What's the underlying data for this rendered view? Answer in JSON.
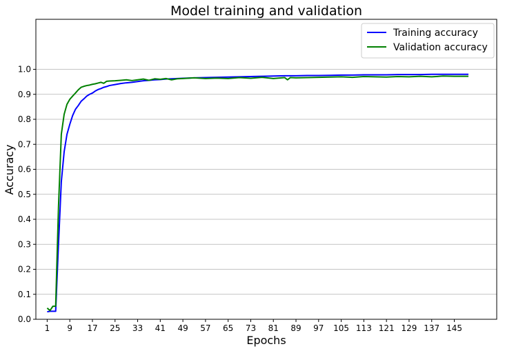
{
  "chart_data": {
    "type": "line",
    "title": "Model training and validation",
    "xlabel": "Epochs",
    "ylabel": "Accuracy",
    "xlim": [
      -3,
      160
    ],
    "ylim": [
      0.0,
      1.2
    ],
    "x_ticks": [
      1,
      9,
      17,
      25,
      33,
      41,
      49,
      57,
      65,
      73,
      81,
      89,
      97,
      105,
      113,
      121,
      129,
      137,
      145
    ],
    "y_ticks": [
      0.0,
      0.1,
      0.2,
      0.3,
      0.4,
      0.5,
      0.6,
      0.7,
      0.8,
      0.9,
      1.0
    ],
    "y_tick_labels": [
      "0.0",
      "0.1",
      "0.2",
      "0.3",
      "0.4",
      "0.5",
      "0.6",
      "0.7",
      "0.8",
      "0.9",
      "1.0"
    ],
    "grid": "horizontal",
    "legend_position": "top-right",
    "series": [
      {
        "name": "Training accuracy",
        "color": "#0000ff",
        "points": [
          [
            1,
            0.03
          ],
          [
            2,
            0.032
          ],
          [
            3,
            0.032
          ],
          [
            4,
            0.032
          ],
          [
            5,
            0.3
          ],
          [
            6,
            0.55
          ],
          [
            7,
            0.67
          ],
          [
            8,
            0.74
          ],
          [
            9,
            0.78
          ],
          [
            10,
            0.815
          ],
          [
            11,
            0.84
          ],
          [
            12,
            0.855
          ],
          [
            13,
            0.872
          ],
          [
            14,
            0.882
          ],
          [
            15,
            0.893
          ],
          [
            16,
            0.9
          ],
          [
            17,
            0.905
          ],
          [
            18,
            0.913
          ],
          [
            19,
            0.919
          ],
          [
            20,
            0.923
          ],
          [
            21,
            0.928
          ],
          [
            22,
            0.931
          ],
          [
            23,
            0.935
          ],
          [
            25,
            0.939
          ],
          [
            27,
            0.943
          ],
          [
            29,
            0.946
          ],
          [
            31,
            0.948
          ],
          [
            33,
            0.951
          ],
          [
            35,
            0.954
          ],
          [
            37,
            0.956
          ],
          [
            39,
            0.958
          ],
          [
            41,
            0.959
          ],
          [
            43,
            0.961
          ],
          [
            45,
            0.962
          ],
          [
            47,
            0.963
          ],
          [
            49,
            0.964
          ],
          [
            53,
            0.966
          ],
          [
            57,
            0.967
          ],
          [
            61,
            0.968
          ],
          [
            65,
            0.969
          ],
          [
            69,
            0.97
          ],
          [
            73,
            0.971
          ],
          [
            77,
            0.972
          ],
          [
            81,
            0.973
          ],
          [
            85,
            0.974
          ],
          [
            89,
            0.974
          ],
          [
            93,
            0.975
          ],
          [
            97,
            0.975
          ],
          [
            101,
            0.976
          ],
          [
            105,
            0.977
          ],
          [
            109,
            0.977
          ],
          [
            113,
            0.978
          ],
          [
            117,
            0.978
          ],
          [
            121,
            0.978
          ],
          [
            125,
            0.979
          ],
          [
            129,
            0.979
          ],
          [
            133,
            0.979
          ],
          [
            137,
            0.98
          ],
          [
            141,
            0.98
          ],
          [
            145,
            0.98
          ],
          [
            150,
            0.98
          ]
        ]
      },
      {
        "name": "Validation accuracy",
        "color": "#008000",
        "points": [
          [
            1,
            0.045
          ],
          [
            2,
            0.035
          ],
          [
            3,
            0.052
          ],
          [
            4,
            0.052
          ],
          [
            5,
            0.45
          ],
          [
            6,
            0.74
          ],
          [
            7,
            0.82
          ],
          [
            8,
            0.86
          ],
          [
            9,
            0.88
          ],
          [
            10,
            0.893
          ],
          [
            11,
            0.905
          ],
          [
            12,
            0.918
          ],
          [
            13,
            0.928
          ],
          [
            14,
            0.932
          ],
          [
            15,
            0.935
          ],
          [
            16,
            0.937
          ],
          [
            17,
            0.94
          ],
          [
            18,
            0.942
          ],
          [
            19,
            0.945
          ],
          [
            20,
            0.948
          ],
          [
            21,
            0.944
          ],
          [
            22,
            0.952
          ],
          [
            23,
            0.953
          ],
          [
            25,
            0.954
          ],
          [
            27,
            0.956
          ],
          [
            29,
            0.958
          ],
          [
            31,
            0.955
          ],
          [
            33,
            0.958
          ],
          [
            35,
            0.961
          ],
          [
            37,
            0.956
          ],
          [
            39,
            0.962
          ],
          [
            41,
            0.96
          ],
          [
            43,
            0.963
          ],
          [
            45,
            0.958
          ],
          [
            47,
            0.962
          ],
          [
            49,
            0.963
          ],
          [
            53,
            0.966
          ],
          [
            57,
            0.963
          ],
          [
            61,
            0.965
          ],
          [
            65,
            0.963
          ],
          [
            69,
            0.967
          ],
          [
            73,
            0.964
          ],
          [
            77,
            0.968
          ],
          [
            81,
            0.963
          ],
          [
            85,
            0.967
          ],
          [
            86,
            0.958
          ],
          [
            87,
            0.967
          ],
          [
            89,
            0.966
          ],
          [
            93,
            0.967
          ],
          [
            97,
            0.968
          ],
          [
            101,
            0.969
          ],
          [
            105,
            0.97
          ],
          [
            109,
            0.968
          ],
          [
            113,
            0.971
          ],
          [
            117,
            0.97
          ],
          [
            121,
            0.969
          ],
          [
            125,
            0.971
          ],
          [
            129,
            0.97
          ],
          [
            133,
            0.972
          ],
          [
            137,
            0.97
          ],
          [
            141,
            0.973
          ],
          [
            145,
            0.972
          ],
          [
            150,
            0.972
          ]
        ]
      }
    ]
  }
}
